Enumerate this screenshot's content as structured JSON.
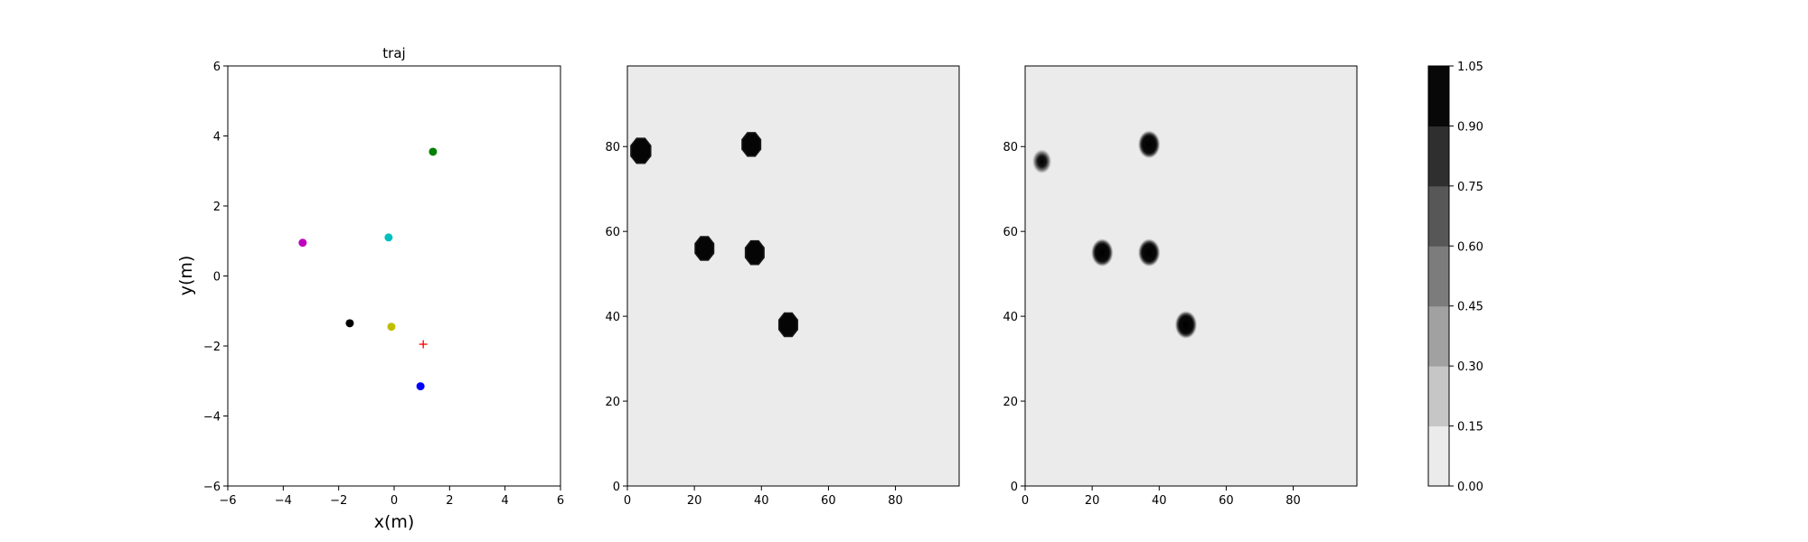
{
  "chart_data": [
    {
      "type": "scatter",
      "title": "traj",
      "xlabel": "x(m)",
      "ylabel": "y(m)",
      "xlim": [
        -6,
        6
      ],
      "ylim": [
        -6,
        6
      ],
      "xticks": [
        "−6",
        "−4",
        "−2",
        "0",
        "2",
        "4",
        "6"
      ],
      "yticks": [
        "−6",
        "−4",
        "−2",
        "0",
        "2",
        "4",
        "6"
      ],
      "grid": false,
      "points": [
        {
          "x": 1.4,
          "y": 3.55,
          "color": "#008000",
          "marker": "circle"
        },
        {
          "x": -3.3,
          "y": 0.95,
          "color": "#bf00bf",
          "marker": "circle"
        },
        {
          "x": -0.2,
          "y": 1.1,
          "color": "#00bfbf",
          "marker": "circle"
        },
        {
          "x": -1.6,
          "y": -1.35,
          "color": "#000000",
          "marker": "circle"
        },
        {
          "x": -0.1,
          "y": -1.45,
          "color": "#bfbf00",
          "marker": "circle"
        },
        {
          "x": 1.05,
          "y": -1.95,
          "color": "#ff0000",
          "marker": "plus"
        },
        {
          "x": 0.95,
          "y": -3.15,
          "color": "#0000ff",
          "marker": "circle"
        }
      ]
    },
    {
      "type": "heatmap",
      "title": "",
      "xlim": [
        0,
        99
      ],
      "ylim": [
        0,
        99
      ],
      "xticks": [
        "0",
        "20",
        "40",
        "60",
        "80"
      ],
      "yticks": [
        "0",
        "20",
        "40",
        "60",
        "80"
      ],
      "background": "#ebebeb",
      "blobs": [
        {
          "x": 4,
          "y": 79,
          "r": 3.2,
          "intensity": 1.0,
          "style": "octagon"
        },
        {
          "x": 37,
          "y": 80.5,
          "r": 3.0,
          "intensity": 1.0,
          "style": "octagon"
        },
        {
          "x": 23,
          "y": 56,
          "r": 3.0,
          "intensity": 1.0,
          "style": "octagon"
        },
        {
          "x": 38,
          "y": 55,
          "r": 3.0,
          "intensity": 1.0,
          "style": "octagon"
        },
        {
          "x": 48,
          "y": 38,
          "r": 3.0,
          "intensity": 1.0,
          "style": "octagon"
        }
      ]
    },
    {
      "type": "heatmap",
      "title": "",
      "xlim": [
        0,
        99
      ],
      "ylim": [
        0,
        99
      ],
      "xticks": [
        "0",
        "20",
        "40",
        "60",
        "80"
      ],
      "yticks": [
        "0",
        "20",
        "40",
        "60",
        "80"
      ],
      "background": "#ebebeb",
      "blobs": [
        {
          "x": 5,
          "y": 76.5,
          "r": 2.6,
          "intensity": 0.9,
          "style": "soft"
        },
        {
          "x": 37,
          "y": 80.5,
          "r": 3.0,
          "intensity": 1.0,
          "style": "soft"
        },
        {
          "x": 23,
          "y": 55,
          "r": 3.0,
          "intensity": 1.0,
          "style": "soft"
        },
        {
          "x": 37,
          "y": 55,
          "r": 3.0,
          "intensity": 1.0,
          "style": "soft"
        },
        {
          "x": 48,
          "y": 38,
          "r": 3.0,
          "intensity": 1.0,
          "style": "soft"
        }
      ]
    }
  ],
  "colorbar": {
    "levels": [
      "0.00",
      "0.15",
      "0.30",
      "0.45",
      "0.60",
      "0.75",
      "0.90",
      "1.05"
    ],
    "colors": [
      "#ebebeb",
      "#c6c6c6",
      "#a1a1a1",
      "#7c7c7c",
      "#575757",
      "#2f2f2f",
      "#080808"
    ]
  }
}
